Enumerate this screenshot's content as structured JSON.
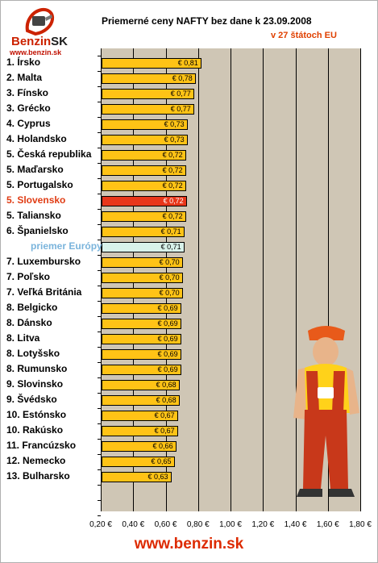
{
  "header": {
    "logo_word_a": "Benzin",
    "logo_word_b": "SK",
    "logo_url": "www.benzin.sk",
    "title": "Priemerné ceny NAFTY bez dane k 23.09.2008",
    "subtitle": "v 27 štátoch EU"
  },
  "footer": {
    "url": "www.benzin.sk"
  },
  "colors": {
    "bar": "#ffc316",
    "highlight": "#e8361a",
    "average": "#d8f2ea",
    "plot_bg": "#cfc6b5",
    "brand_red": "#dd2a00"
  },
  "chart_data": {
    "type": "bar",
    "orientation": "horizontal",
    "title": "Priemerné ceny NAFTY bez dane k 23.09.2008",
    "subtitle": "v 27 štátoch EU",
    "xlim": [
      0.2,
      1.8
    ],
    "xticks": [
      "0,20 €",
      "0,40 €",
      "0,60 €",
      "0,80 €",
      "1,00 €",
      "1,20 €",
      "1,40 €",
      "1,60 €",
      "1,80 €"
    ],
    "grid": true,
    "categories": [
      "1. Írsko",
      "2. Malta",
      "3. Fínsko",
      "3. Grécko",
      "4. Cyprus",
      "4. Holandsko",
      "5. Česká republika",
      "5. Maďarsko",
      "5. Portugalsko",
      "5. Slovensko",
      "5. Taliansko",
      "6. Španielsko",
      "priemer Európy",
      "7. Luxembursko",
      "7. Poľsko",
      "7. Veľká Británia",
      "8. Belgicko",
      "8. Dánsko",
      "8. Litva",
      "8. Lotyšsko",
      "8. Rumunsko",
      "9. Slovinsko",
      "9. Švédsko",
      "10. Estónsko",
      "10. Rakúsko",
      "11. Francúzsko",
      "12. Nemecko",
      "13. Bulharsko"
    ],
    "values": [
      0.815,
      0.78,
      0.77,
      0.77,
      0.73,
      0.73,
      0.72,
      0.72,
      0.72,
      0.725,
      0.72,
      0.71,
      0.71,
      0.7,
      0.7,
      0.7,
      0.69,
      0.69,
      0.69,
      0.69,
      0.69,
      0.68,
      0.68,
      0.67,
      0.67,
      0.66,
      0.65,
      0.63
    ],
    "value_labels": [
      "€ 0,81",
      "€ 0,78",
      "€ 0,77",
      "€ 0,77",
      "€ 0,73",
      "€ 0,73",
      "€ 0,72",
      "€ 0,72",
      "€ 0,72",
      "€ 0,72",
      "€ 0,72",
      "€ 0,71",
      "€ 0,71",
      "€ 0,70",
      "€ 0,70",
      "€ 0,70",
      "€ 0,69",
      "€ 0,69",
      "€ 0,69",
      "€ 0,69",
      "€ 0,69",
      "€ 0,68",
      "€ 0,68",
      "€ 0,67",
      "€ 0,67",
      "€ 0,66",
      "€ 0,65",
      "€ 0,63"
    ],
    "highlight_category": "5. Slovensko",
    "average_category": "priemer Európy"
  }
}
